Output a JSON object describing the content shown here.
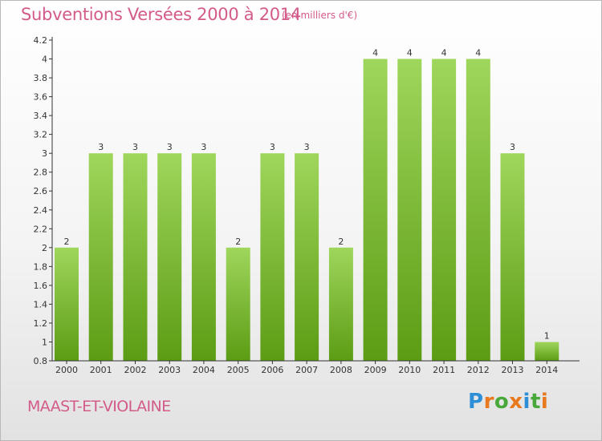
{
  "header": {
    "title": "Subventions Versées 2000 à 2014",
    "unit": "(en milliers d'€)"
  },
  "footer": {
    "commune": "MAAST-ET-VIOLAINE",
    "logo_letters": [
      "P",
      "r",
      "o",
      "x",
      "i",
      "t",
      "i"
    ],
    "logo_colors": [
      "#2f8fd6",
      "#e8791f",
      "#49a83a",
      "#e8791f",
      "#2f8fd6",
      "#49a83a",
      "#e8791f"
    ]
  },
  "colors": {
    "bar_light": "#9fd65c",
    "bar_dark": "#5c9c14",
    "title": "#d35b8a",
    "axis": "#333333"
  },
  "chart_data": {
    "type": "bar",
    "title": "Subventions Versées 2000 à 2014",
    "subtitle": "(en milliers d'€)",
    "categories": [
      "2000",
      "2001",
      "2002",
      "2003",
      "2004",
      "2005",
      "2006",
      "2007",
      "2008",
      "2009",
      "2010",
      "2011",
      "2012",
      "2013",
      "2014"
    ],
    "values": [
      2,
      3,
      3,
      3,
      3,
      2,
      3,
      3,
      2,
      4,
      4,
      4,
      4,
      3,
      1
    ],
    "data_labels": [
      "2",
      "3",
      "3",
      "3",
      "3",
      "2",
      "3",
      "3",
      "2",
      "4",
      "4",
      "4",
      "4",
      "3",
      "1"
    ],
    "yticks": [
      0.8,
      1,
      1.2,
      1.4,
      1.6,
      1.8,
      2,
      2.2,
      2.4,
      2.6,
      2.8,
      3,
      3.2,
      3.4,
      3.6,
      3.8,
      4,
      4.2
    ],
    "ytick_labels": [
      "0.8",
      "1",
      "1.2",
      "1.4",
      "1.6",
      "1.8",
      "2",
      "2.2",
      "2.4",
      "2.6",
      "2.8",
      "3",
      "3.2",
      "3.4",
      "3.6",
      "3.8",
      "4",
      "4.2"
    ],
    "ylim": [
      0.8,
      4.2
    ],
    "xlabel": "",
    "ylabel": "",
    "grid": false,
    "legend": "none"
  }
}
